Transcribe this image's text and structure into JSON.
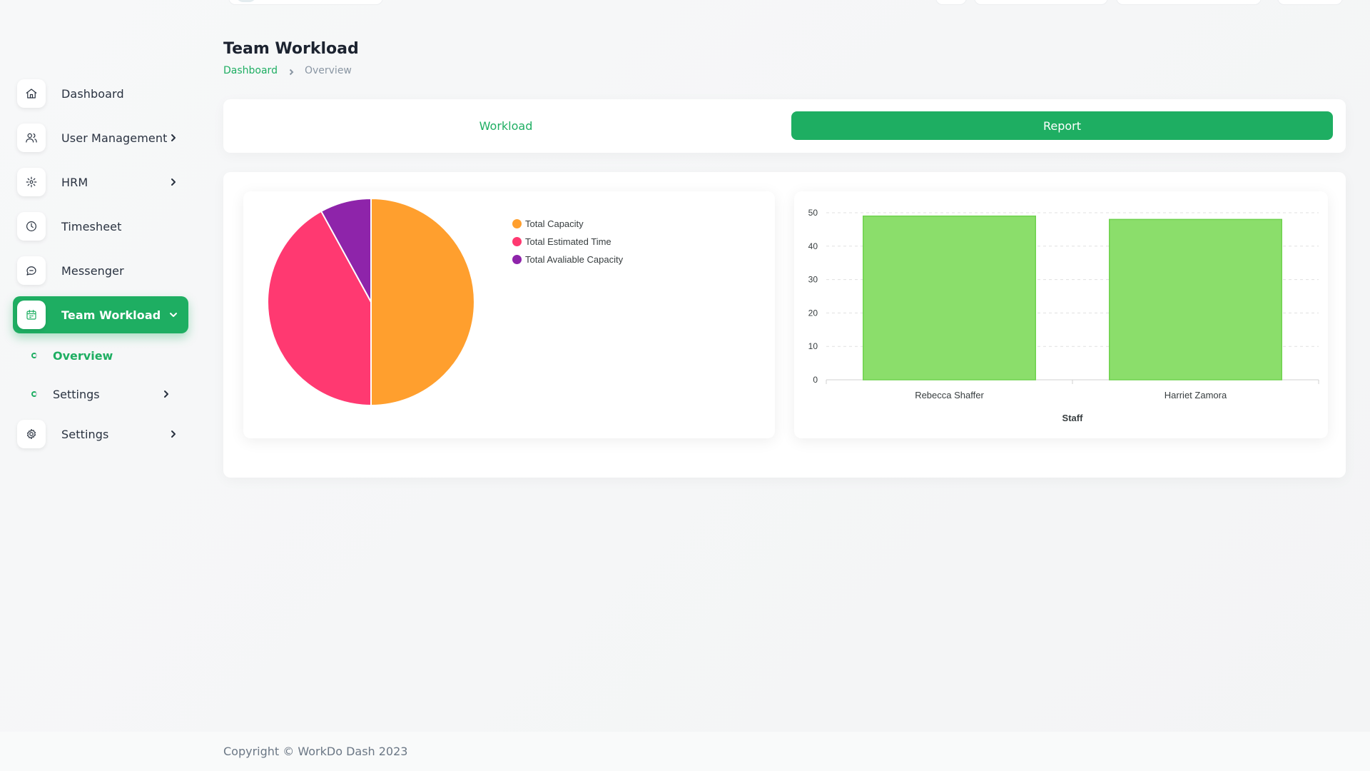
{
  "sidebar": {
    "items": [
      {
        "label": "Dashboard",
        "icon": "home-icon"
      },
      {
        "label": "User Management",
        "icon": "users-icon"
      },
      {
        "label": "HRM",
        "icon": "hrm-icon"
      },
      {
        "label": "Timesheet",
        "icon": "clock-icon"
      },
      {
        "label": "Messenger",
        "icon": "chat-icon"
      },
      {
        "label": "Team Workload",
        "icon": "calendar-icon"
      },
      {
        "label": "Settings",
        "icon": "gear-icon"
      }
    ],
    "submenu": [
      {
        "label": "Overview"
      },
      {
        "label": "Settings"
      }
    ]
  },
  "page": {
    "title": "Team Workload",
    "breadcrumb": {
      "link": "Dashboard",
      "current": "Overview"
    }
  },
  "tabs": {
    "workload": "Workload",
    "report": "Report"
  },
  "colors": {
    "accent": "#1eae62",
    "pie": [
      "#ff9f2e",
      "#ff3971",
      "#8e24aa"
    ],
    "bar": "#8bde6b"
  },
  "chart_data": [
    {
      "type": "pie",
      "labels": [
        "Total Capacity",
        "Total Estimated Time",
        "Total Avaliable Capacity"
      ],
      "values": [
        50,
        42,
        8
      ],
      "legend": "top-right"
    },
    {
      "type": "bar",
      "categories": [
        "Rebecca Shaffer",
        "Harriet Zamora"
      ],
      "values": [
        49,
        48
      ],
      "xlabel": "Staff",
      "ylabel": "",
      "ylim": [
        0,
        50
      ],
      "yticks": [
        0,
        10,
        20,
        30,
        40,
        50
      ],
      "grid": true
    }
  ],
  "footer": {
    "text": "Copyright © WorkDo Dash 2023"
  }
}
